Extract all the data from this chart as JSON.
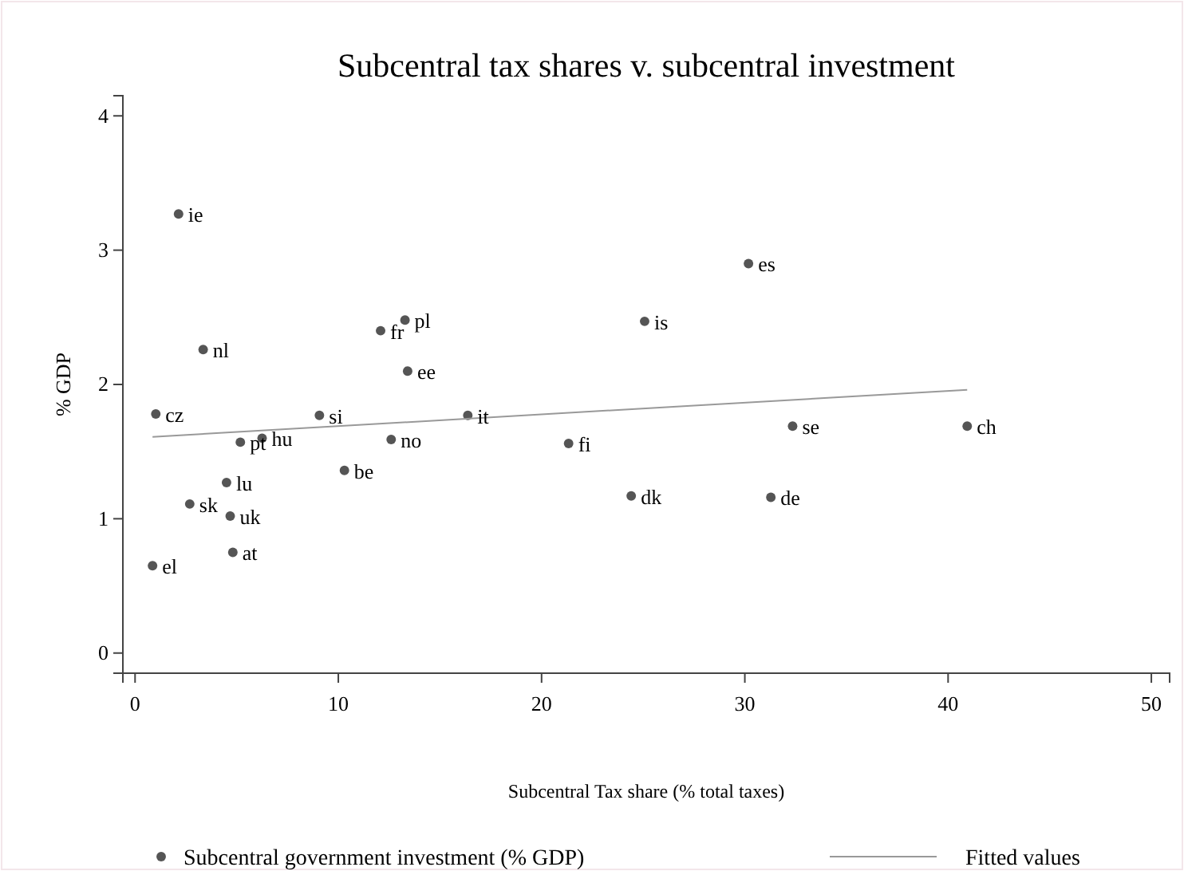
{
  "chart_data": {
    "type": "scatter",
    "title": "Subcentral tax shares v. subcentral investment",
    "xlabel": "Subcentral Tax share (% total taxes)",
    "ylabel": "% GDP",
    "xlim": [
      -0.6,
      50.9
    ],
    "ylim": [
      -0.15,
      4.15
    ],
    "xticks": [
      0,
      10,
      20,
      30,
      40,
      50
    ],
    "yticks": [
      0,
      1,
      2,
      3,
      4
    ],
    "grid": false,
    "legend": "bottom",
    "series": [
      {
        "name": "Subcentral government investment (% GDP)",
        "marker": "circle",
        "color": "#555555",
        "x": [
          2.14,
          3.35,
          1.02,
          5.18,
          6.25,
          4.5,
          2.69,
          4.68,
          4.81,
          0.86,
          9.07,
          10.3,
          12.6,
          12.08,
          13.28,
          13.41,
          16.37,
          21.33,
          30.18,
          25.07,
          32.35,
          40.94,
          24.41,
          31.28
        ],
        "values": [
          3.27,
          2.26,
          1.78,
          1.57,
          1.6,
          1.27,
          1.11,
          1.02,
          0.75,
          0.65,
          1.77,
          1.36,
          1.59,
          2.4,
          2.48,
          2.1,
          1.77,
          1.56,
          2.9,
          2.47,
          1.69,
          1.69,
          1.17,
          1.16
        ]
      },
      {
        "name": "Fitted values",
        "type": "line",
        "color": "#999999",
        "line_style": "solid",
        "x": [
          0.86,
          40.94
        ],
        "values": [
          1.61,
          1.96
        ]
      }
    ],
    "annotations": [
      {
        "text": "ie",
        "x": 2.14,
        "y": 3.27
      },
      {
        "text": "nl",
        "x": 3.35,
        "y": 2.26
      },
      {
        "text": "cz",
        "x": 1.02,
        "y": 1.78
      },
      {
        "text": "pt",
        "x": 5.18,
        "y": 1.57
      },
      {
        "text": "hu",
        "x": 6.25,
        "y": 1.6
      },
      {
        "text": "lu",
        "x": 4.5,
        "y": 1.27
      },
      {
        "text": "sk",
        "x": 2.69,
        "y": 1.11
      },
      {
        "text": "uk",
        "x": 4.68,
        "y": 1.02
      },
      {
        "text": "at",
        "x": 4.81,
        "y": 0.75
      },
      {
        "text": "el",
        "x": 0.86,
        "y": 0.65
      },
      {
        "text": "si",
        "x": 9.07,
        "y": 1.77
      },
      {
        "text": "be",
        "x": 10.3,
        "y": 1.36
      },
      {
        "text": "no",
        "x": 12.6,
        "y": 1.59
      },
      {
        "text": "fr",
        "x": 12.08,
        "y": 2.4
      },
      {
        "text": "pl",
        "x": 13.28,
        "y": 2.48
      },
      {
        "text": "ee",
        "x": 13.41,
        "y": 2.1
      },
      {
        "text": "it",
        "x": 16.37,
        "y": 1.77
      },
      {
        "text": "fi",
        "x": 21.33,
        "y": 1.56
      },
      {
        "text": "es",
        "x": 30.18,
        "y": 2.9
      },
      {
        "text": "is",
        "x": 25.07,
        "y": 2.47
      },
      {
        "text": "se",
        "x": 32.35,
        "y": 1.69
      },
      {
        "text": "ch",
        "x": 40.94,
        "y": 1.69
      },
      {
        "text": "dk",
        "x": 24.41,
        "y": 1.17
      },
      {
        "text": "de",
        "x": 31.28,
        "y": 1.16
      }
    ]
  }
}
